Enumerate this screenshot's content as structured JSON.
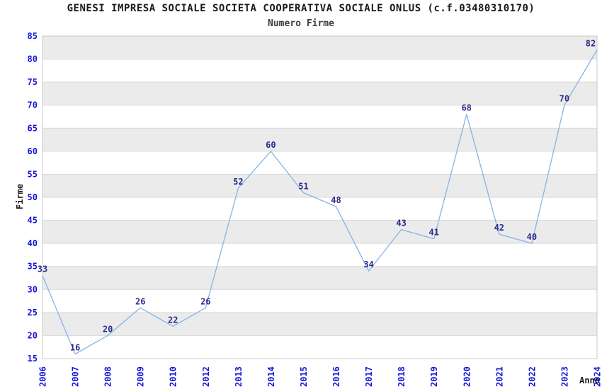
{
  "chart_data": {
    "type": "line",
    "title": "GENESI IMPRESA SOCIALE SOCIETA COOPERATIVA SOCIALE ONLUS (c.f.03480310170)",
    "subtitle": "Numero Firme",
    "xlabel": "Anno",
    "ylabel": "Firme",
    "categories": [
      "2006",
      "2007",
      "2008",
      "2009",
      "2010",
      "2012",
      "2013",
      "2014",
      "2015",
      "2016",
      "2017",
      "2018",
      "2019",
      "2020",
      "2021",
      "2022",
      "2023",
      "2024"
    ],
    "values": [
      33,
      16,
      20,
      26,
      22,
      26,
      52,
      60,
      51,
      48,
      34,
      43,
      41,
      68,
      42,
      40,
      70,
      82
    ],
    "ylim": [
      15,
      85
    ],
    "ytick_step": 5,
    "grid": "horizontal-bands-alternating",
    "legend": "none",
    "data_labels": "shown-above-points",
    "colors": {
      "line": "#85b4e6",
      "tick_label": "#1414dd",
      "value_label": "#2b2b8c",
      "band_gray": "#ebebeb",
      "band_white": "#ffffff",
      "gridline": "#d9d9d9",
      "plot_border": "#c9c9c9",
      "title": "#1a1a1a",
      "subtitle": "#3c3c3c",
      "axis_title": "#1a1a1a",
      "background": "#ffffff"
    }
  }
}
